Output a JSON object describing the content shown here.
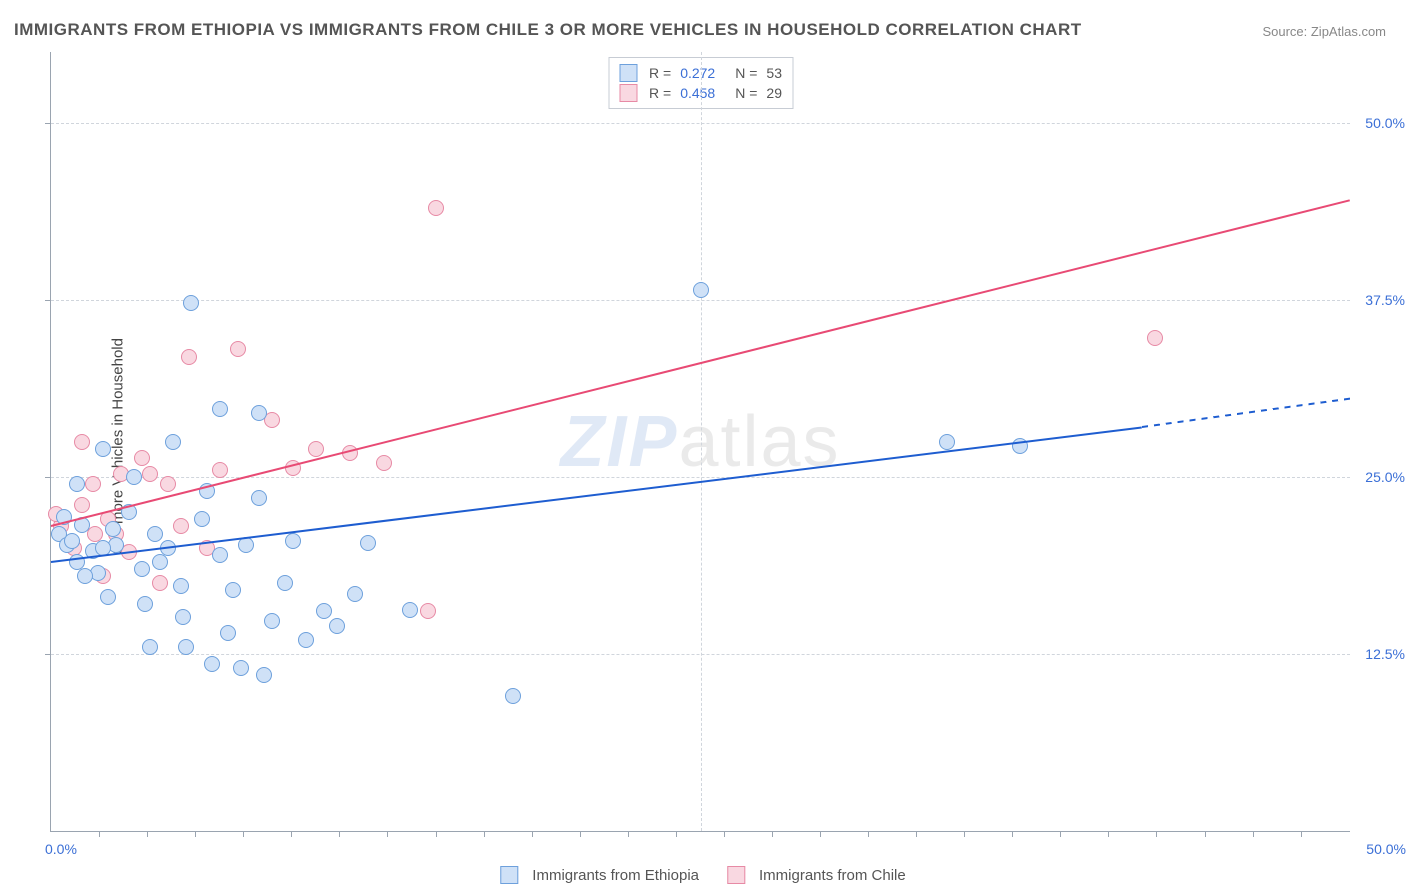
{
  "title": "IMMIGRANTS FROM ETHIOPIA VS IMMIGRANTS FROM CHILE 3 OR MORE VEHICLES IN HOUSEHOLD CORRELATION CHART",
  "source": "Source: ZipAtlas.com",
  "y_axis_label": "3 or more Vehicles in Household",
  "watermark_z": "ZIP",
  "watermark_rest": "atlas",
  "chart": {
    "type": "scatter",
    "background_color": "#ffffff",
    "grid_color": "#d0d5dc",
    "axis_color": "#9aa4b0",
    "xlim": [
      0,
      50
    ],
    "ylim": [
      0,
      55
    ],
    "y_ticks": [
      12.5,
      25.0,
      37.5,
      50.0
    ],
    "y_tick_labels": [
      "12.5%",
      "25.0%",
      "37.5%",
      "50.0%"
    ],
    "x_vgrid_at": 25.0,
    "x_left_label": "0.0%",
    "x_right_label": "50.0%",
    "x_minor_ticks": [
      1.85,
      3.7,
      5.55,
      7.4,
      9.25,
      11.1,
      12.95,
      14.8,
      16.65,
      18.5,
      20.35,
      22.2,
      24.05,
      25.9,
      27.75,
      29.6,
      31.45,
      33.3,
      35.15,
      37.0,
      38.85,
      40.7,
      42.55,
      44.4,
      46.25,
      48.1
    ],
    "marker_radius": 8,
    "marker_border_width": 1.5,
    "series": [
      {
        "name": "Immigrants from Ethiopia",
        "fill": "#cfe1f7",
        "stroke": "#6da0dc",
        "R": "0.272",
        "N": "53",
        "trend_line": {
          "color": "#1e5dd0",
          "width": 2.4,
          "x1": 0,
          "y1": 19.0,
          "x2": 42,
          "y2": 28.5,
          "extend_x2": 50,
          "extend_y2": 30.5,
          "dash_extend": true
        },
        "points": [
          [
            0.3,
            21.0
          ],
          [
            0.6,
            20.2
          ],
          [
            0.8,
            20.5
          ],
          [
            1.0,
            19.0
          ],
          [
            1.2,
            21.6
          ],
          [
            1.0,
            24.5
          ],
          [
            1.6,
            19.8
          ],
          [
            1.8,
            18.2
          ],
          [
            2.0,
            27.0
          ],
          [
            2.2,
            16.5
          ],
          [
            2.4,
            21.3
          ],
          [
            2.5,
            20.2
          ],
          [
            3.0,
            22.5
          ],
          [
            3.2,
            25.0
          ],
          [
            3.5,
            18.5
          ],
          [
            3.6,
            16.0
          ],
          [
            4.0,
            21.0
          ],
          [
            4.2,
            19.0
          ],
          [
            4.7,
            27.5
          ],
          [
            5.0,
            17.3
          ],
          [
            5.2,
            13.0
          ],
          [
            5.4,
            37.3
          ],
          [
            5.1,
            15.1
          ],
          [
            6.0,
            24.0
          ],
          [
            6.2,
            11.8
          ],
          [
            6.5,
            29.8
          ],
          [
            6.8,
            14.0
          ],
          [
            7.0,
            17.0
          ],
          [
            7.3,
            11.5
          ],
          [
            7.5,
            20.2
          ],
          [
            8.0,
            23.5
          ],
          [
            8.2,
            11.0
          ],
          [
            8.5,
            14.8
          ],
          [
            9.0,
            17.5
          ],
          [
            9.3,
            20.5
          ],
          [
            8.0,
            29.5
          ],
          [
            10.5,
            15.5
          ],
          [
            11.0,
            14.5
          ],
          [
            11.7,
            16.7
          ],
          [
            12.2,
            20.3
          ],
          [
            13.8,
            15.6
          ],
          [
            17.8,
            9.5
          ],
          [
            25.0,
            38.2
          ],
          [
            34.5,
            27.5
          ],
          [
            37.3,
            27.2
          ],
          [
            1.3,
            18.0
          ],
          [
            2.0,
            20.0
          ],
          [
            0.5,
            22.2
          ],
          [
            4.5,
            20.0
          ],
          [
            6.5,
            19.5
          ],
          [
            3.8,
            13.0
          ],
          [
            5.8,
            22.0
          ],
          [
            9.8,
            13.5
          ]
        ]
      },
      {
        "name": "Immigrants from Chile",
        "fill": "#f9d8e1",
        "stroke": "#e78aa5",
        "R": "0.458",
        "N": "29",
        "trend_line": {
          "color": "#e84a74",
          "width": 2.4,
          "x1": 0,
          "y1": 21.5,
          "x2": 50,
          "y2": 44.5,
          "dash_extend": false
        },
        "points": [
          [
            0.4,
            21.5
          ],
          [
            0.9,
            20.0
          ],
          [
            1.2,
            23.0
          ],
          [
            1.2,
            27.5
          ],
          [
            1.6,
            24.5
          ],
          [
            2.2,
            22.0
          ],
          [
            2.0,
            18.0
          ],
          [
            2.7,
            25.2
          ],
          [
            3.0,
            19.7
          ],
          [
            3.5,
            26.3
          ],
          [
            3.8,
            25.2
          ],
          [
            4.5,
            24.5
          ],
          [
            4.2,
            17.5
          ],
          [
            5.0,
            21.5
          ],
          [
            5.3,
            33.5
          ],
          [
            6.0,
            20.0
          ],
          [
            6.5,
            25.5
          ],
          [
            7.2,
            34.0
          ],
          [
            8.5,
            29.0
          ],
          [
            9.3,
            25.6
          ],
          [
            10.2,
            27.0
          ],
          [
            11.5,
            26.7
          ],
          [
            12.8,
            26.0
          ],
          [
            14.5,
            15.5
          ],
          [
            14.8,
            44.0
          ],
          [
            0.2,
            22.4
          ],
          [
            2.5,
            21.0
          ],
          [
            42.5,
            34.8
          ],
          [
            1.7,
            21.0
          ]
        ]
      }
    ]
  },
  "legend_bottom": {
    "items": [
      {
        "label": "Immigrants from Ethiopia",
        "fill": "#cfe1f7",
        "stroke": "#6da0dc"
      },
      {
        "label": "Immigrants from Chile",
        "fill": "#f9d8e1",
        "stroke": "#e78aa5"
      }
    ]
  }
}
